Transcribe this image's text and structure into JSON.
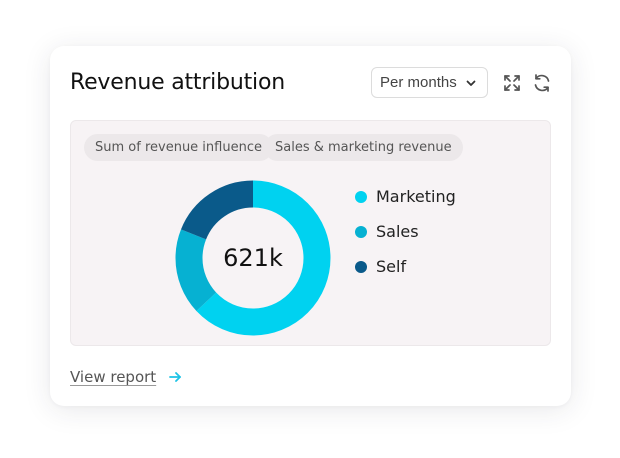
{
  "card": {
    "title": "Revenue attribution",
    "period_select": {
      "value": "Per months"
    },
    "expand_icon": "expand-arrows-icon",
    "refresh_icon": "refresh-icon"
  },
  "filters": {
    "chips": [
      "Sum of revenue influence",
      "Sales & marketing revenue"
    ]
  },
  "chart_data": {
    "type": "pie",
    "center_label": "621k",
    "series": [
      {
        "name": "Marketing",
        "value": 0.63,
        "color": "#00d2f0"
      },
      {
        "name": "Sales",
        "value": 0.18,
        "color": "#06b1d2"
      },
      {
        "name": "Self",
        "value": 0.19,
        "color": "#0a5a8a"
      }
    ]
  },
  "footer": {
    "link_label": "View report",
    "link_color": "#1dc3e6"
  }
}
